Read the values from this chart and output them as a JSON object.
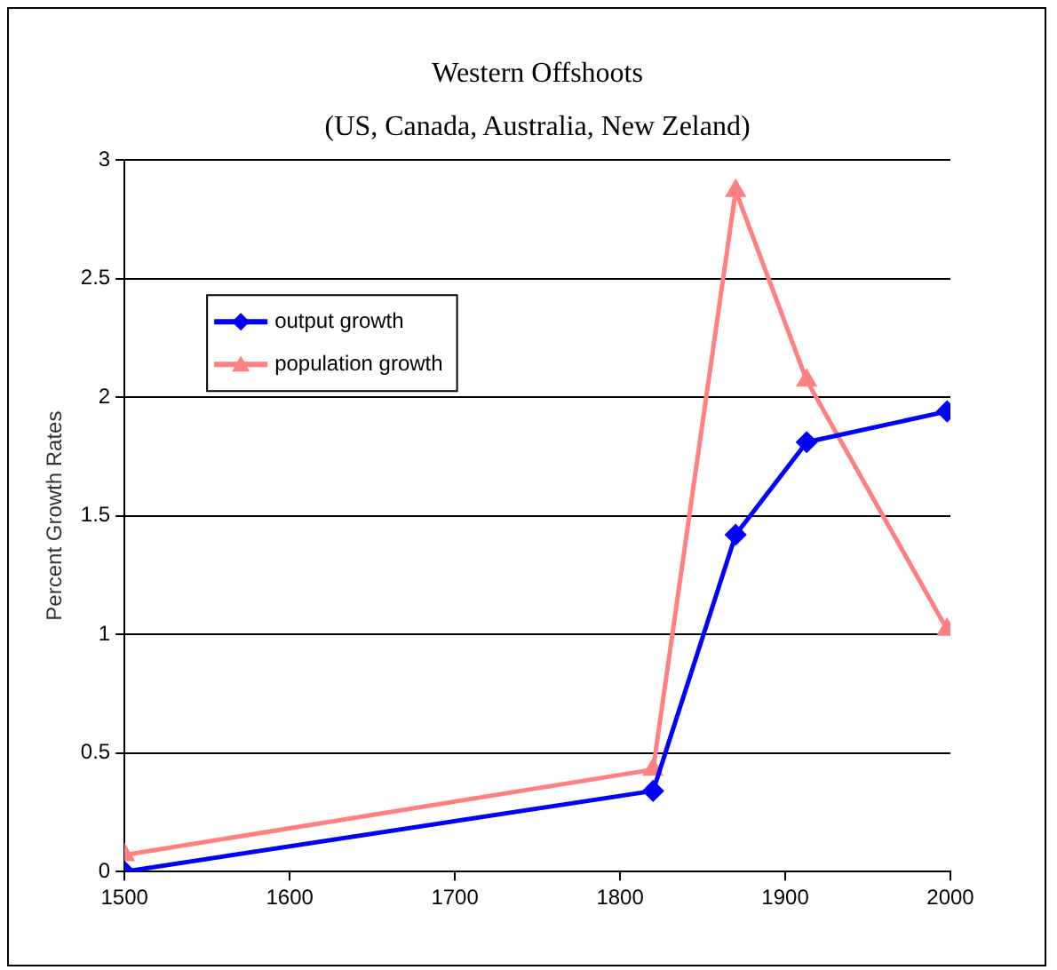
{
  "chart_data": {
    "type": "line",
    "title": "Western Offshoots",
    "subtitle": "(US, Canada, Australia, New Zeland)",
    "ylabel": "Percent Growth Rates",
    "x": [
      1500,
      1820,
      1870,
      1913,
      1998
    ],
    "series": [
      {
        "name": "output growth",
        "color": "#0000ff",
        "values": [
          0,
          0.34,
          1.42,
          1.81,
          1.94
        ],
        "marker": "diamond"
      },
      {
        "name": "population growth",
        "color": "#ff8080",
        "values": [
          0.07,
          0.43,
          2.87,
          2.07,
          1.02
        ],
        "marker": "triangle"
      }
    ],
    "xlim": [
      1500,
      2000
    ],
    "xticks": [
      1500,
      1600,
      1700,
      1800,
      1900,
      2000
    ],
    "ylim": [
      0,
      3
    ],
    "yticks": [
      0,
      0.5,
      1,
      1.5,
      2,
      2.5,
      3
    ],
    "grid": "y",
    "legend": "top left",
    "line_style": "solid"
  }
}
